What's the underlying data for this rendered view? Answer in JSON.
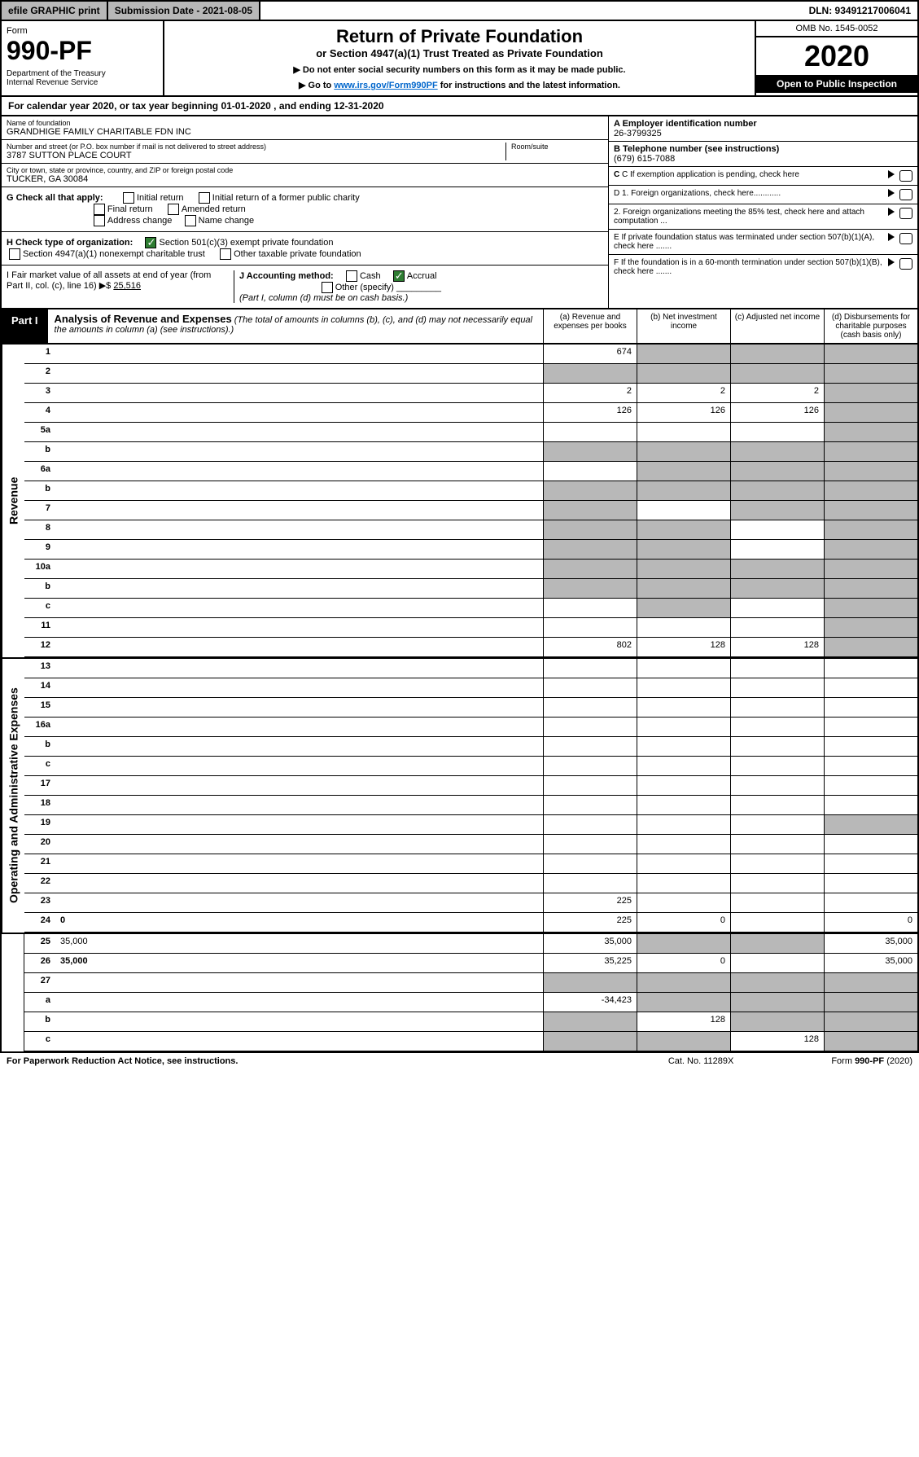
{
  "topbar": {
    "efile": "efile GRAPHIC print",
    "sub_date_label": "Submission Date - 2021-08-05",
    "dln": "DLN: 93491217006041"
  },
  "header": {
    "form_label": "Form",
    "form_num": "990-PF",
    "dept": "Department of the Treasury\nInternal Revenue Service",
    "title": "Return of Private Foundation",
    "subtitle": "or Section 4947(a)(1) Trust Treated as Private Foundation",
    "note1": "▶ Do not enter social security numbers on this form as it may be made public.",
    "note2": "▶ Go to ",
    "link": "www.irs.gov/Form990PF",
    "note2b": " for instructions and the latest information.",
    "omb": "OMB No. 1545-0052",
    "year": "2020",
    "open": "Open to Public Inspection"
  },
  "cal": "For calendar year 2020, or tax year beginning 01-01-2020                          , and ending 12-31-2020",
  "info": {
    "name_label": "Name of foundation",
    "name": "GRANDHIGE FAMILY CHARITABLE FDN INC",
    "addr_label": "Number and street (or P.O. box number if mail is not delivered to street address)",
    "addr": "3787 SUTTON PLACE COURT",
    "room_label": "Room/suite",
    "city_label": "City or town, state or province, country, and ZIP or foreign postal code",
    "city": "TUCKER, GA  30084",
    "ein_label": "A Employer identification number",
    "ein": "26-3799325",
    "phone_label": "B Telephone number (see instructions)",
    "phone": "(679) 615-7088",
    "c_label": "C If exemption application is pending, check here",
    "d1": "D 1. Foreign organizations, check here............",
    "d2": "2. Foreign organizations meeting the 85% test, check here and attach computation ...",
    "e_label": "E  If private foundation status was terminated under section 507(b)(1)(A), check here .......",
    "f_label": "F  If the foundation is in a 60-month termination under section 507(b)(1)(B), check here ......."
  },
  "checks": {
    "g_label": "G Check all that apply:",
    "g_opts": [
      "Initial return",
      "Initial return of a former public charity",
      "Final return",
      "Amended return",
      "Address change",
      "Name change"
    ],
    "h_label": "H Check type of organization:",
    "h_501": "Section 501(c)(3) exempt private foundation",
    "h_4947": "Section 4947(a)(1) nonexempt charitable trust",
    "h_other_tax": "Other taxable private foundation",
    "i_label": "I Fair market value of all assets at end of year (from Part II, col. (c), line 16) ▶$",
    "i_val": "25,516",
    "j_label": "J Accounting method:",
    "j_cash": "Cash",
    "j_accrual": "Accrual",
    "j_other": "Other (specify)",
    "j_note": "(Part I, column (d) must be on cash basis.)"
  },
  "part1": {
    "label": "Part I",
    "title": "Analysis of Revenue and Expenses",
    "title_note": "(The total of amounts in columns (b), (c), and (d) may not necessarily equal the amounts in column (a) (see instructions).)",
    "col_a": "(a)    Revenue and expenses per books",
    "col_b": "(b)  Net investment income",
    "col_c": "(c)  Adjusted net income",
    "col_d": "(d)  Disbursements for charitable purposes (cash basis only)"
  },
  "sections": {
    "revenue": "Revenue",
    "expenses": "Operating and Administrative Expenses"
  },
  "rows": [
    {
      "n": "1",
      "d": "",
      "a": "674",
      "b": "",
      "c": "",
      "shade": [
        "b",
        "c",
        "d"
      ]
    },
    {
      "n": "2",
      "d": "",
      "a": "",
      "b": "",
      "c": "",
      "shade": [
        "a",
        "b",
        "c",
        "d"
      ]
    },
    {
      "n": "3",
      "d": "",
      "a": "2",
      "b": "2",
      "c": "2",
      "shade": [
        "d"
      ]
    },
    {
      "n": "4",
      "d": "",
      "a": "126",
      "b": "126",
      "c": "126",
      "shade": [
        "d"
      ]
    },
    {
      "n": "5a",
      "d": "",
      "a": "",
      "b": "",
      "c": "",
      "shade": [
        "d"
      ]
    },
    {
      "n": "b",
      "d": "",
      "a": "",
      "b": "",
      "c": "",
      "shade": [
        "a",
        "b",
        "c",
        "d"
      ]
    },
    {
      "n": "6a",
      "d": "",
      "a": "",
      "b": "",
      "c": "",
      "shade": [
        "b",
        "c",
        "d"
      ]
    },
    {
      "n": "b",
      "d": "",
      "a": "",
      "b": "",
      "c": "",
      "shade": [
        "a",
        "b",
        "c",
        "d"
      ]
    },
    {
      "n": "7",
      "d": "",
      "a": "",
      "b": "",
      "c": "",
      "shade": [
        "a",
        "c",
        "d"
      ]
    },
    {
      "n": "8",
      "d": "",
      "a": "",
      "b": "",
      "c": "",
      "shade": [
        "a",
        "b",
        "d"
      ]
    },
    {
      "n": "9",
      "d": "",
      "a": "",
      "b": "",
      "c": "",
      "shade": [
        "a",
        "b",
        "d"
      ]
    },
    {
      "n": "10a",
      "d": "",
      "a": "",
      "b": "",
      "c": "",
      "shade": [
        "a",
        "b",
        "c",
        "d"
      ]
    },
    {
      "n": "b",
      "d": "",
      "a": "",
      "b": "",
      "c": "",
      "shade": [
        "a",
        "b",
        "c",
        "d"
      ]
    },
    {
      "n": "c",
      "d": "",
      "a": "",
      "b": "",
      "c": "",
      "shade": [
        "b",
        "d"
      ]
    },
    {
      "n": "11",
      "d": "",
      "a": "",
      "b": "",
      "c": "",
      "shade": [
        "d"
      ]
    },
    {
      "n": "12",
      "d": "",
      "a": "802",
      "b": "128",
      "c": "128",
      "shade": [
        "d"
      ],
      "bold": true
    },
    {
      "n": "13",
      "d": "",
      "a": "",
      "b": "",
      "c": ""
    },
    {
      "n": "14",
      "d": "",
      "a": "",
      "b": "",
      "c": ""
    },
    {
      "n": "15",
      "d": "",
      "a": "",
      "b": "",
      "c": ""
    },
    {
      "n": "16a",
      "d": "",
      "a": "",
      "b": "",
      "c": ""
    },
    {
      "n": "b",
      "d": "",
      "a": "",
      "b": "",
      "c": ""
    },
    {
      "n": "c",
      "d": "",
      "a": "",
      "b": "",
      "c": ""
    },
    {
      "n": "17",
      "d": "",
      "a": "",
      "b": "",
      "c": ""
    },
    {
      "n": "18",
      "d": "",
      "a": "",
      "b": "",
      "c": ""
    },
    {
      "n": "19",
      "d": "",
      "a": "",
      "b": "",
      "c": "",
      "shade": [
        "d"
      ]
    },
    {
      "n": "20",
      "d": "",
      "a": "",
      "b": "",
      "c": ""
    },
    {
      "n": "21",
      "d": "",
      "a": "",
      "b": "",
      "c": ""
    },
    {
      "n": "22",
      "d": "",
      "a": "",
      "b": "",
      "c": ""
    },
    {
      "n": "23",
      "d": "",
      "a": "225",
      "b": "",
      "c": ""
    },
    {
      "n": "24",
      "d": "0",
      "a": "225",
      "b": "0",
      "c": "",
      "bold": true
    },
    {
      "n": "25",
      "d": "35,000",
      "a": "35,000",
      "b": "",
      "c": "",
      "shade": [
        "b",
        "c"
      ]
    },
    {
      "n": "26",
      "d": "35,000",
      "a": "35,225",
      "b": "0",
      "c": "",
      "bold": true
    },
    {
      "n": "27",
      "d": "",
      "a": "",
      "b": "",
      "c": "",
      "shade": [
        "a",
        "b",
        "c",
        "d"
      ]
    },
    {
      "n": "a",
      "d": "",
      "a": "-34,423",
      "b": "",
      "c": "",
      "shade": [
        "b",
        "c",
        "d"
      ],
      "bold": true
    },
    {
      "n": "b",
      "d": "",
      "a": "",
      "b": "128",
      "c": "",
      "shade": [
        "a",
        "c",
        "d"
      ],
      "bold": true
    },
    {
      "n": "c",
      "d": "",
      "a": "",
      "b": "",
      "c": "128",
      "shade": [
        "a",
        "b",
        "d"
      ],
      "bold": true
    }
  ],
  "footer": {
    "left": "For Paperwork Reduction Act Notice, see instructions.",
    "mid": "Cat. No. 11289X",
    "right": "Form 990-PF (2020)"
  },
  "colors": {
    "shade": "#b8b8b8",
    "link": "#0066cc",
    "check": "#2e7d32"
  }
}
